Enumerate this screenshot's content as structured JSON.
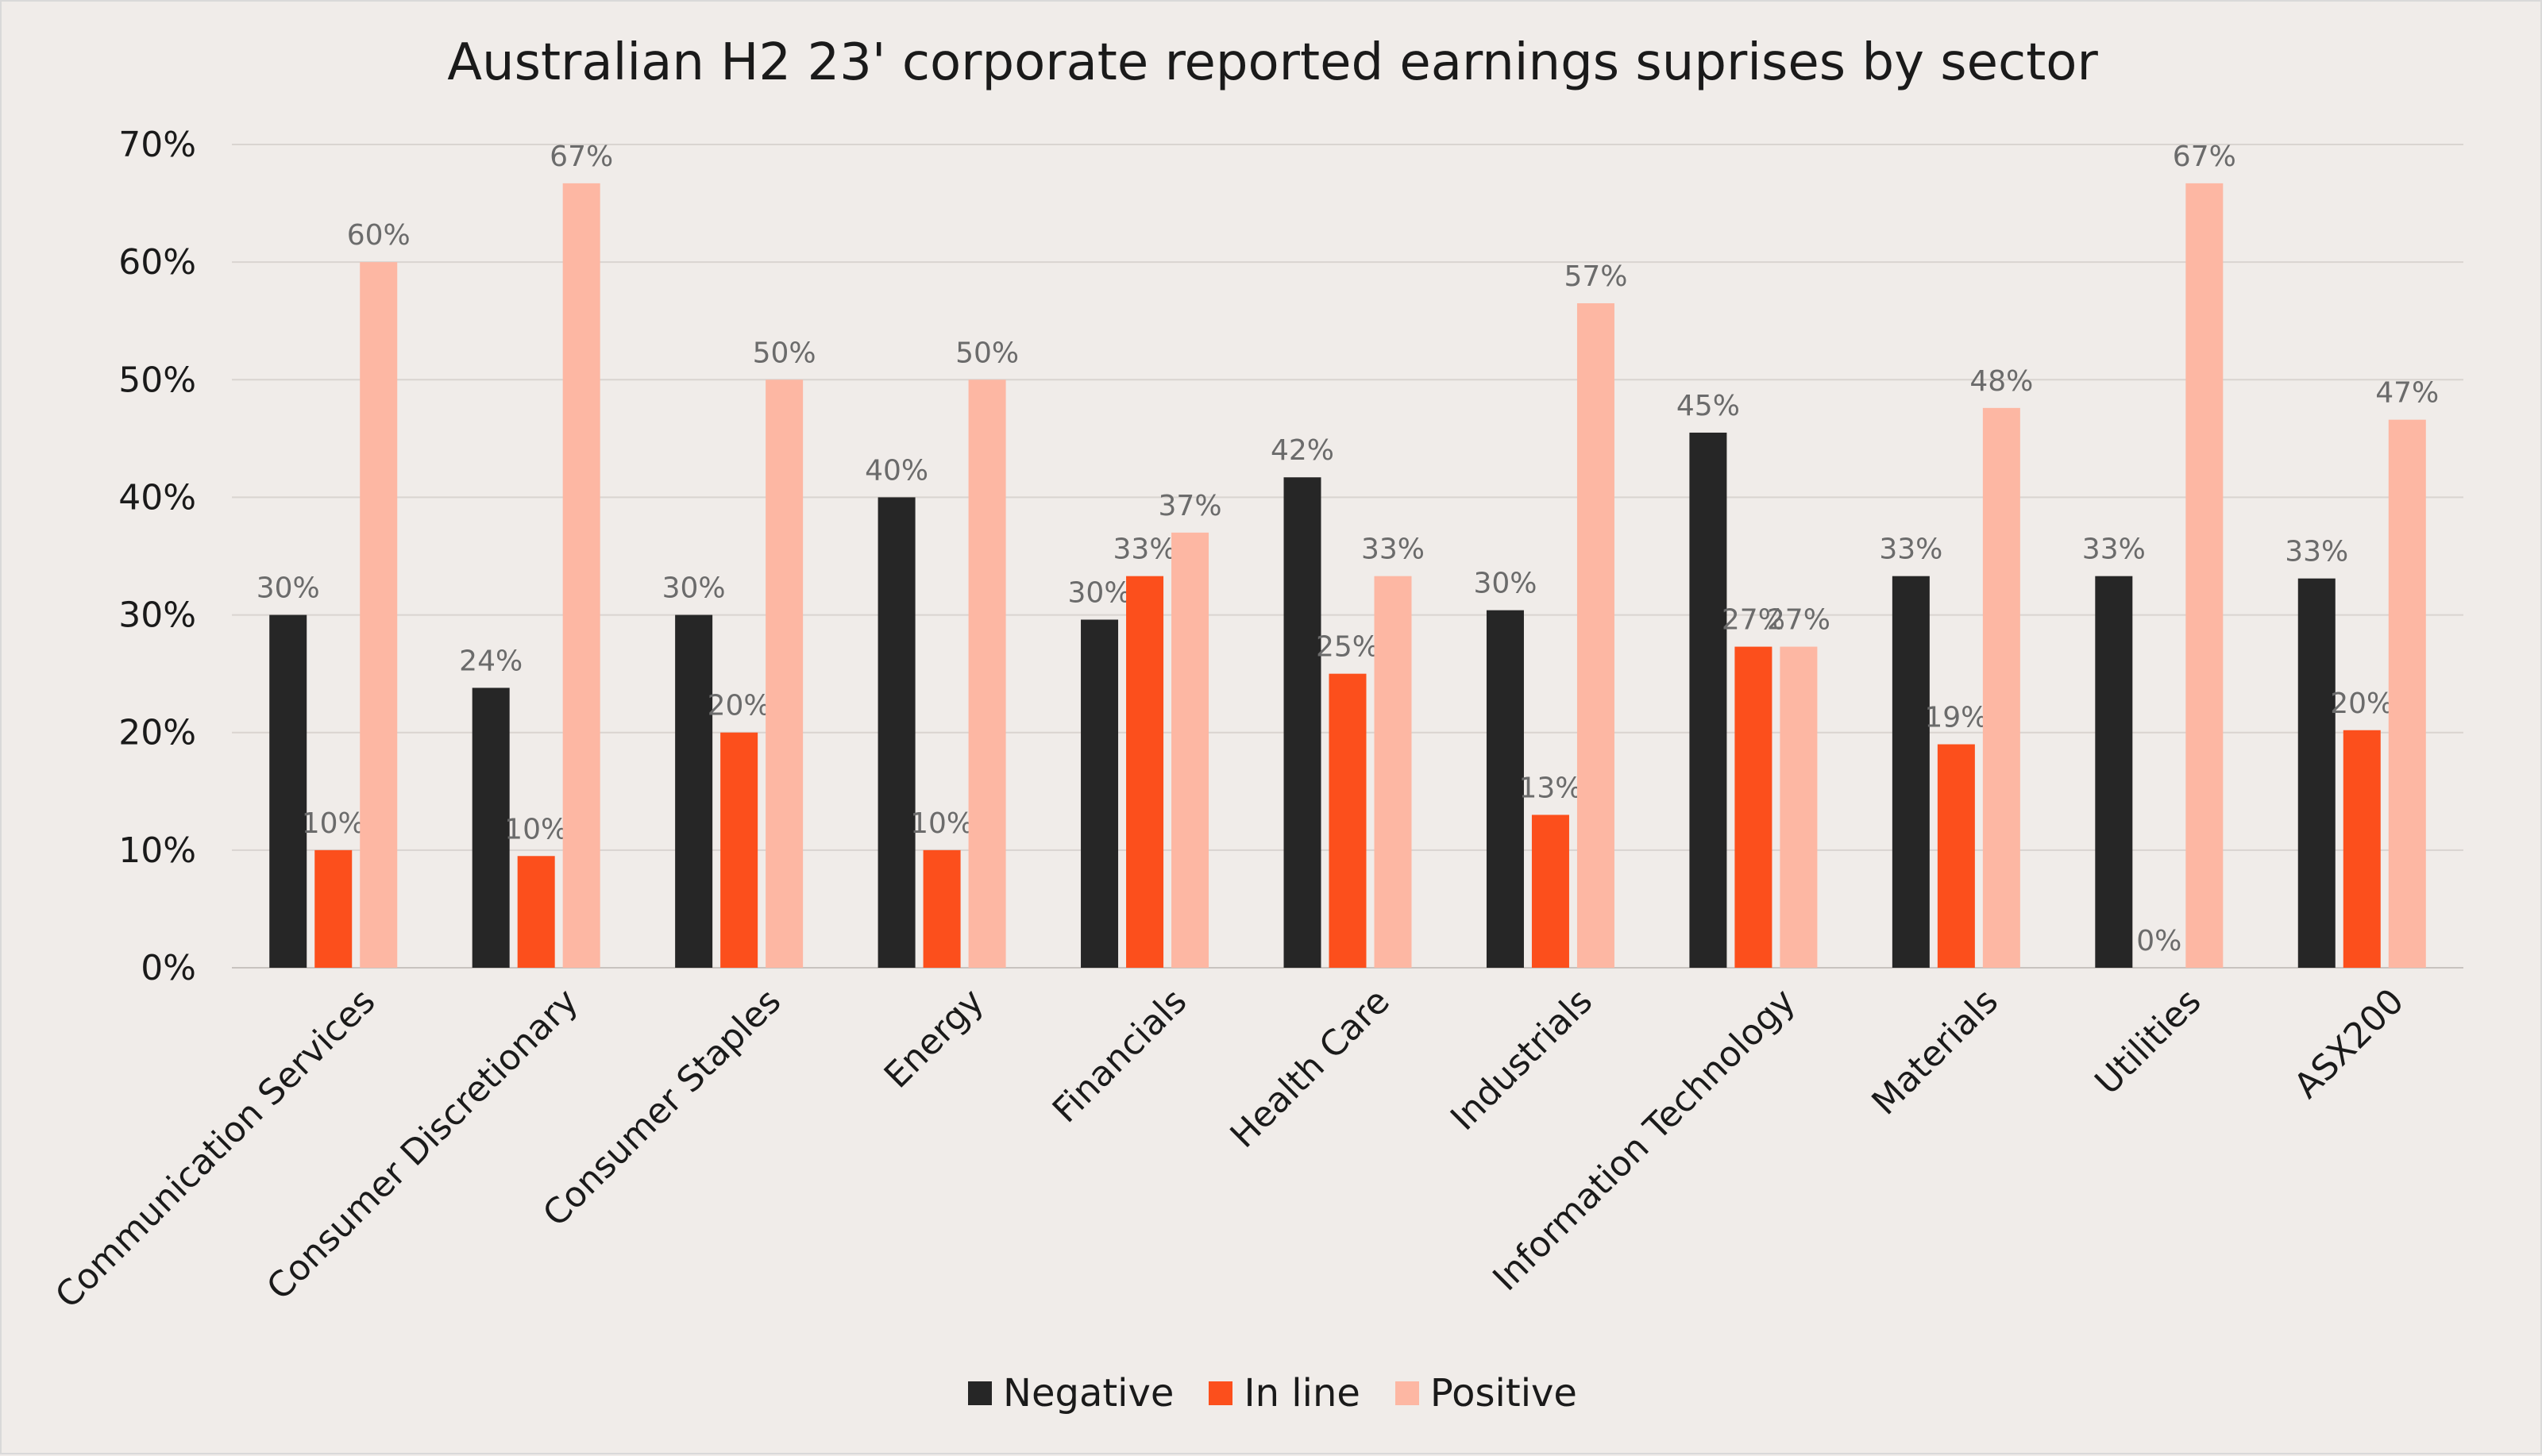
{
  "chart_data": {
    "type": "bar",
    "title": "Australian H2 23' corporate reported earnings suprises by sector",
    "categories": [
      "Communication Services",
      "Consumer Discretionary",
      "Consumer Staples",
      "Energy",
      "Financials",
      "Health Care",
      "Industrials",
      "Information Technology",
      "Materials",
      "Utilities",
      "ASX200"
    ],
    "series": [
      {
        "name": "Negative",
        "color": "#262626",
        "values": [
          0.3,
          0.24,
          0.3,
          0.4,
          0.3,
          0.42,
          0.3,
          0.45,
          0.33,
          0.33,
          0.33
        ],
        "raw": [
          0.3,
          0.238,
          0.3,
          0.4,
          0.296,
          0.417,
          0.304,
          0.455,
          0.333,
          0.333,
          0.331
        ],
        "labels": [
          "30%",
          "24%",
          "30%",
          "40%",
          "30%",
          "42%",
          "30%",
          "45%",
          "33%",
          "33%",
          "33%"
        ]
      },
      {
        "name": "In line",
        "color": "#fc4f1c",
        "values": [
          0.1,
          0.1,
          0.2,
          0.1,
          0.33,
          0.25,
          0.13,
          0.27,
          0.19,
          0.0,
          0.2
        ],
        "raw": [
          0.1,
          0.095,
          0.2,
          0.1,
          0.333,
          0.25,
          0.13,
          0.273,
          0.19,
          0.0,
          0.202
        ],
        "labels": [
          "10%",
          "10%",
          "20%",
          "10%",
          "33%",
          "25%",
          "13%",
          "27%",
          "19%",
          "0%",
          "20%"
        ]
      },
      {
        "name": "Positive",
        "color": "#fdb7a3",
        "values": [
          0.6,
          0.67,
          0.5,
          0.5,
          0.37,
          0.33,
          0.57,
          0.27,
          0.48,
          0.67,
          0.47
        ],
        "raw": [
          0.6,
          0.667,
          0.5,
          0.5,
          0.37,
          0.333,
          0.565,
          0.273,
          0.476,
          0.667,
          0.466
        ],
        "labels": [
          "60%",
          "67%",
          "50%",
          "50%",
          "37%",
          "33%",
          "57%",
          "27%",
          "48%",
          "67%",
          "47%"
        ]
      }
    ],
    "y_ticks": [
      "0%",
      "10%",
      "20%",
      "30%",
      "40%",
      "50%",
      "60%",
      "70%"
    ],
    "ylim": [
      0,
      0.7
    ],
    "grid": true,
    "legend": "bottom"
  }
}
